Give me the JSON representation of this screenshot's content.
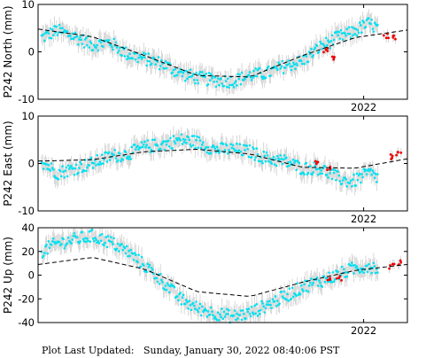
{
  "footer": {
    "label": "Plot Last Updated:",
    "value": "Sunday, January 30, 2022 08:40:06 PST"
  },
  "chart_data": [
    {
      "type": "scatter",
      "ylabel": "P242 North (mm)",
      "ylim": [
        -10,
        10
      ],
      "yticks": [
        -10,
        0,
        10
      ],
      "x_range": [
        2020.14,
        2022.25
      ],
      "xtick_label": "2022",
      "xtick_value": 2022.0,
      "colors": {
        "points": "#00e0f0",
        "recent": "#ee0000",
        "errorbar": "#cfcfcf",
        "model": "#000000"
      },
      "model": {
        "x": [
          2020.14,
          2020.45,
          2020.75,
          2021.05,
          2021.35,
          2021.65,
          2021.95,
          2022.25
        ],
        "y": [
          4.8,
          3.2,
          -0.8,
          -5.0,
          -5.3,
          -0.8,
          3.0,
          4.6
        ]
      },
      "series": [
        {
          "color_key": "points",
          "x": [
            2020.16,
            2020.25,
            2020.35,
            2020.45,
            2020.55,
            2020.65,
            2020.75,
            2020.85,
            2020.95,
            2021.05,
            2021.15,
            2021.25,
            2021.35,
            2021.45,
            2021.55,
            2021.65,
            2021.75,
            2021.85,
            2021.93,
            2022.03,
            2022.08
          ],
          "y": [
            3.0,
            4.5,
            3.2,
            1.5,
            2.0,
            -0.5,
            -1.5,
            -2.5,
            -4.5,
            -5.5,
            -6.0,
            -6.2,
            -5.0,
            -4.5,
            -3.0,
            -2.0,
            1.0,
            3.0,
            4.0,
            6.0,
            5.0
          ]
        },
        {
          "color_key": "recent",
          "x": [
            2021.78,
            2021.82,
            2022.13,
            2022.18
          ],
          "y": [
            0.5,
            -1.5,
            3.5,
            3.0
          ]
        }
      ]
    },
    {
      "type": "scatter",
      "ylabel": "P242 East (mm)",
      "ylim": [
        -10,
        10
      ],
      "yticks": [
        -10,
        0,
        10
      ],
      "x_range": [
        2020.14,
        2022.25
      ],
      "xtick_label": "2022",
      "xtick_value": 2022.0,
      "colors": {
        "points": "#00e0f0",
        "recent": "#ee0000",
        "errorbar": "#cfcfcf",
        "model": "#000000"
      },
      "model": {
        "x": [
          2020.14,
          2020.45,
          2020.75,
          2021.05,
          2021.35,
          2021.65,
          2021.95,
          2022.25
        ],
        "y": [
          0.5,
          0.8,
          2.5,
          3.0,
          2.0,
          -0.8,
          -1.0,
          1.0
        ]
      },
      "series": [
        {
          "color_key": "points",
          "x": [
            2020.16,
            2020.25,
            2020.35,
            2020.45,
            2020.55,
            2020.65,
            2020.75,
            2020.85,
            2020.95,
            2021.05,
            2021.15,
            2021.25,
            2021.35,
            2021.45,
            2021.55,
            2021.65,
            2021.75,
            2021.85,
            2021.93,
            2022.03,
            2022.08
          ],
          "y": [
            0.5,
            -2.0,
            -1.0,
            0.0,
            1.5,
            2.0,
            3.5,
            4.0,
            5.0,
            4.5,
            3.0,
            3.0,
            2.5,
            1.0,
            0.5,
            -1.0,
            -1.0,
            -3.0,
            -4.0,
            -2.0,
            -3.0
          ]
        },
        {
          "color_key": "recent",
          "x": [
            2021.73,
            2021.8,
            2022.15,
            2022.2
          ],
          "y": [
            0.0,
            -1.0,
            1.5,
            2.0
          ]
        }
      ]
    },
    {
      "type": "scatter",
      "ylabel": "P242 Up (mm)",
      "ylim": [
        -40,
        40
      ],
      "yticks": [
        -40,
        -20,
        0,
        20,
        40
      ],
      "x_range": [
        2020.14,
        2022.25
      ],
      "xtick_label": "2022",
      "xtick_value": 2022.0,
      "colors": {
        "points": "#00e0f0",
        "recent": "#ee0000",
        "errorbar": "#cfcfcf",
        "model": "#000000"
      },
      "model": {
        "x": [
          2020.14,
          2020.45,
          2020.75,
          2021.05,
          2021.35,
          2021.65,
          2021.95,
          2022.25
        ],
        "y": [
          9.0,
          15.0,
          5.0,
          -14.0,
          -18.0,
          -6.0,
          4.0,
          9.0
        ]
      },
      "series": [
        {
          "color_key": "points",
          "x": [
            2020.16,
            2020.25,
            2020.35,
            2020.45,
            2020.55,
            2020.65,
            2020.75,
            2020.85,
            2020.95,
            2021.05,
            2021.15,
            2021.25,
            2021.35,
            2021.45,
            2021.55,
            2021.65,
            2021.75,
            2021.85,
            2021.93,
            2022.03,
            2022.08
          ],
          "y": [
            20.0,
            27.0,
            30.0,
            33.0,
            28.0,
            20.0,
            8.0,
            -5.0,
            -20.0,
            -28.0,
            -32.0,
            -35.0,
            -32.0,
            -25.0,
            -18.0,
            -10.0,
            -5.0,
            0.0,
            5.0,
            8.0,
            6.0
          ]
        },
        {
          "color_key": "recent",
          "x": [
            2021.8,
            2021.86,
            2022.16,
            2022.21
          ],
          "y": [
            -5.0,
            -3.0,
            8.0,
            10.0
          ]
        }
      ]
    }
  ]
}
